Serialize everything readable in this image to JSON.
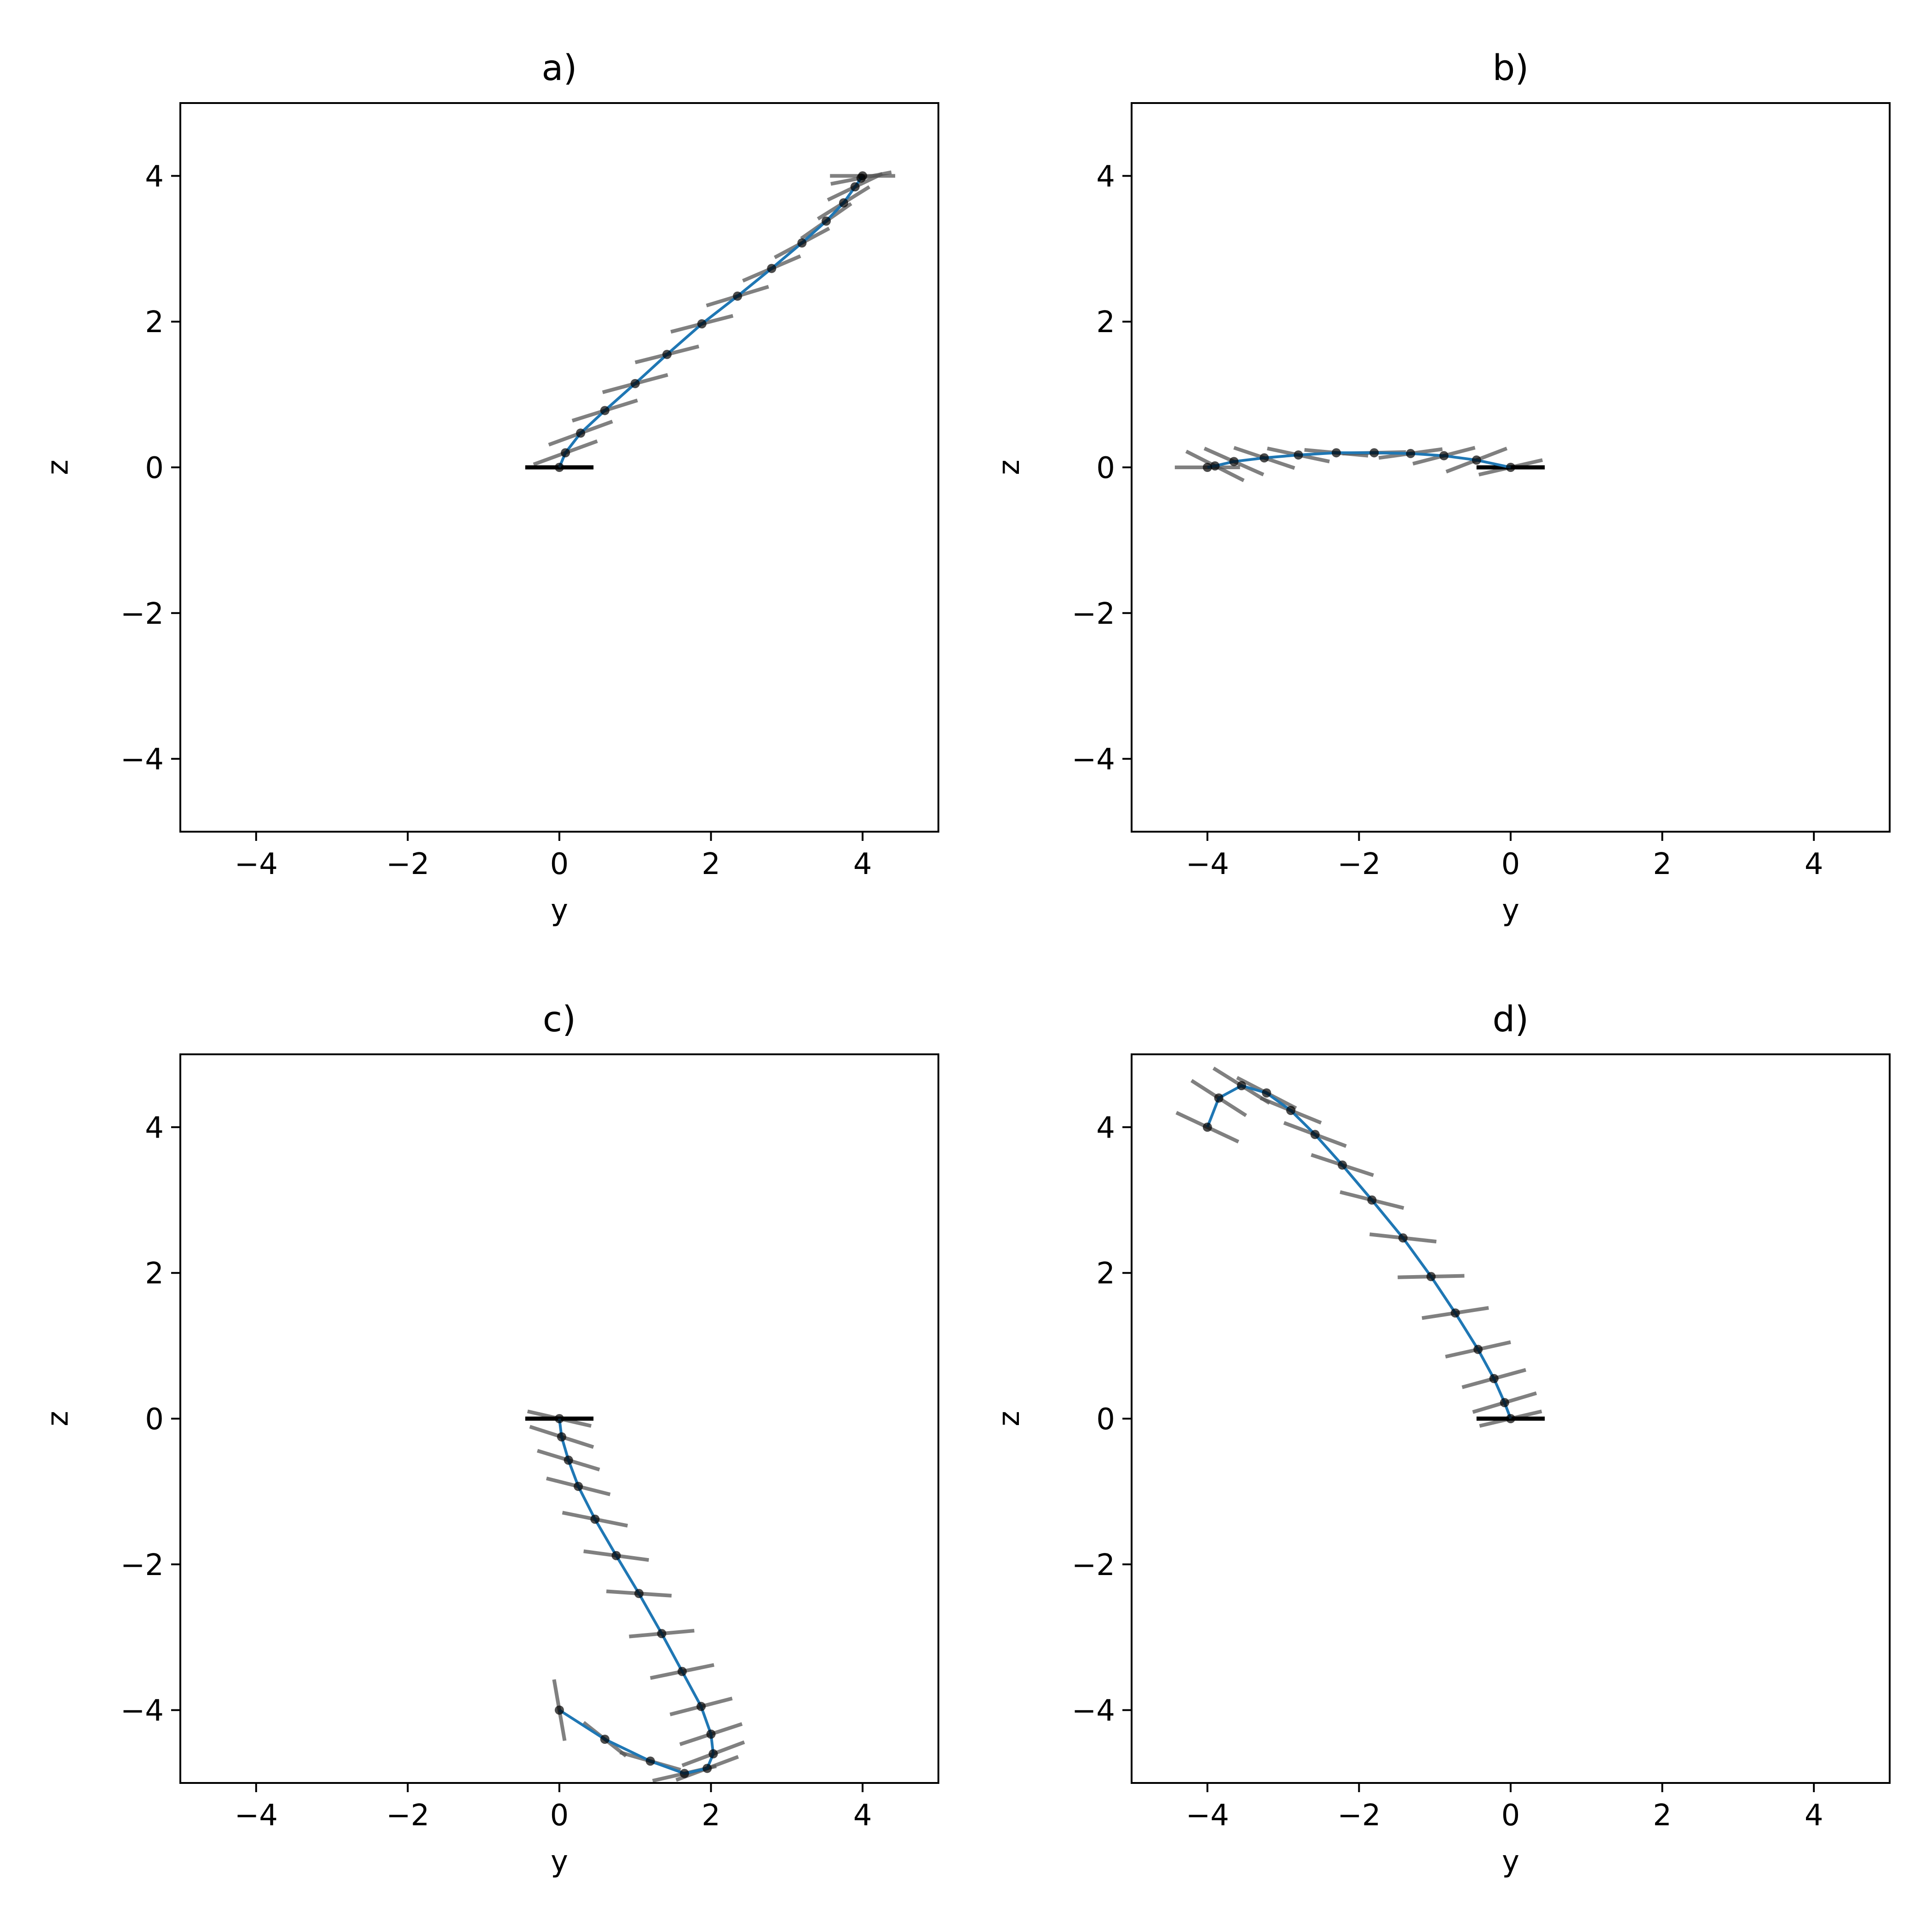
{
  "chart_data": [
    {
      "type": "line",
      "title": "a)",
      "xlabel": "y",
      "ylabel": "z",
      "xlim": [
        -5,
        5
      ],
      "ylim": [
        -5,
        5
      ],
      "xticks": [
        "−4",
        "−2",
        "0",
        "2",
        "4"
      ],
      "yticks": [
        "−4",
        "−2",
        "0",
        "2",
        "4"
      ],
      "grid": false,
      "line_color": "#1f77b4",
      "marker_color": "#000000",
      "segment_color": "#555555",
      "base_segment": {
        "center": [
          0,
          0
        ],
        "dy": 0.45,
        "dz": 0
      },
      "points": [
        {
          "y": 0.0,
          "z": 0.0,
          "dy": 0.45,
          "dz": 0.0
        },
        {
          "y": 0.08,
          "z": 0.2,
          "dy": 0.42,
          "dz": 0.16
        },
        {
          "y": 0.28,
          "z": 0.47,
          "dy": 0.42,
          "dz": 0.16
        },
        {
          "y": 0.6,
          "z": 0.78,
          "dy": 0.43,
          "dz": 0.14
        },
        {
          "y": 1.0,
          "z": 1.15,
          "dy": 0.43,
          "dz": 0.12
        },
        {
          "y": 1.42,
          "z": 1.55,
          "dy": 0.42,
          "dz": 0.11
        },
        {
          "y": 1.88,
          "z": 1.97,
          "dy": 0.41,
          "dz": 0.11
        },
        {
          "y": 2.35,
          "z": 2.35,
          "dy": 0.41,
          "dz": 0.13
        },
        {
          "y": 2.8,
          "z": 2.73,
          "dy": 0.38,
          "dz": 0.17
        },
        {
          "y": 3.2,
          "z": 3.08,
          "dy": 0.36,
          "dz": 0.2
        },
        {
          "y": 3.52,
          "z": 3.38,
          "dy": 0.33,
          "dz": 0.24
        },
        {
          "y": 3.75,
          "z": 3.63,
          "dy": 0.34,
          "dz": 0.22
        },
        {
          "y": 3.9,
          "z": 3.85,
          "dy": 0.36,
          "dz": 0.18
        },
        {
          "y": 3.98,
          "z": 3.97,
          "dy": 0.4,
          "dz": 0.08
        },
        {
          "y": 4.0,
          "z": 4.0,
          "dy": 0.43,
          "dz": 0.0
        }
      ]
    },
    {
      "type": "line",
      "title": "b)",
      "xlabel": "y",
      "ylabel": "z",
      "xlim": [
        -5,
        5
      ],
      "ylim": [
        -5,
        5
      ],
      "xticks": [
        "−4",
        "−2",
        "0",
        "2",
        "4"
      ],
      "yticks": [
        "−4",
        "−2",
        "0",
        "2",
        "4"
      ],
      "grid": false,
      "line_color": "#1f77b4",
      "marker_color": "#000000",
      "segment_color": "#555555",
      "base_segment": {
        "center": [
          0,
          0
        ],
        "dy": 0.45,
        "dz": 0
      },
      "points": [
        {
          "y": 0.0,
          "z": 0.0,
          "dy": 0.42,
          "dz": 0.1
        },
        {
          "y": -0.45,
          "z": 0.1,
          "dy": 0.4,
          "dz": 0.16
        },
        {
          "y": -0.88,
          "z": 0.16,
          "dy": 0.41,
          "dz": 0.11
        },
        {
          "y": -1.32,
          "z": 0.19,
          "dy": 0.42,
          "dz": 0.06
        },
        {
          "y": -1.8,
          "z": 0.2,
          "dy": 0.42,
          "dz": 0.01
        },
        {
          "y": -2.3,
          "z": 0.2,
          "dy": 0.42,
          "dz": -0.04
        },
        {
          "y": -2.8,
          "z": 0.17,
          "dy": 0.41,
          "dz": -0.09
        },
        {
          "y": -3.25,
          "z": 0.13,
          "dy": 0.4,
          "dz": -0.14
        },
        {
          "y": -3.65,
          "z": 0.08,
          "dy": 0.39,
          "dz": -0.18
        },
        {
          "y": -3.9,
          "z": 0.02,
          "dy": 0.38,
          "dz": -0.2
        },
        {
          "y": -4.0,
          "z": 0.0,
          "dy": 0.43,
          "dz": 0.0
        }
      ]
    },
    {
      "type": "line",
      "title": "c)",
      "xlabel": "y",
      "ylabel": "z",
      "xlim": [
        -5,
        5
      ],
      "ylim": [
        -5,
        5
      ],
      "xticks": [
        "−4",
        "−2",
        "0",
        "2",
        "4"
      ],
      "yticks": [
        "−4",
        "−2",
        "0",
        "2",
        "4"
      ],
      "grid": false,
      "line_color": "#1f77b4",
      "marker_color": "#000000",
      "segment_color": "#555555",
      "base_segment": {
        "center": [
          0,
          0
        ],
        "dy": 0.45,
        "dz": 0
      },
      "points": [
        {
          "y": 0.0,
          "z": 0.0,
          "dy": 0.42,
          "dz": -0.1
        },
        {
          "y": 0.03,
          "z": -0.25,
          "dy": 0.42,
          "dz": -0.14
        },
        {
          "y": 0.12,
          "z": -0.57,
          "dy": 0.41,
          "dz": -0.13
        },
        {
          "y": 0.25,
          "z": -0.93,
          "dy": 0.42,
          "dz": -0.11
        },
        {
          "y": 0.47,
          "z": -1.38,
          "dy": 0.43,
          "dz": -0.09
        },
        {
          "y": 0.75,
          "z": -1.88,
          "dy": 0.43,
          "dz": -0.06
        },
        {
          "y": 1.05,
          "z": -2.4,
          "dy": 0.43,
          "dz": -0.03
        },
        {
          "y": 1.35,
          "z": -2.95,
          "dy": 0.43,
          "dz": 0.04
        },
        {
          "y": 1.62,
          "z": -3.47,
          "dy": 0.42,
          "dz": 0.09
        },
        {
          "y": 1.87,
          "z": -3.95,
          "dy": 0.41,
          "dz": 0.11
        },
        {
          "y": 2.0,
          "z": -4.33,
          "dy": 0.41,
          "dz": 0.14
        },
        {
          "y": 2.03,
          "z": -4.6,
          "dy": 0.41,
          "dz": 0.16
        },
        {
          "y": 1.95,
          "z": -4.8,
          "dy": 0.41,
          "dz": 0.16
        },
        {
          "y": 1.65,
          "z": -4.87,
          "dy": 0.42,
          "dz": 0.1
        },
        {
          "y": 1.2,
          "z": -4.7,
          "dy": 0.4,
          "dz": -0.12
        },
        {
          "y": 0.6,
          "z": -4.4,
          "dy": 0.28,
          "dz": -0.23
        },
        {
          "y": 0.0,
          "z": -4.0,
          "dy": 0.07,
          "dz": -0.42
        }
      ]
    },
    {
      "type": "line",
      "title": "d)",
      "xlabel": "y",
      "ylabel": "z",
      "xlim": [
        -5,
        5
      ],
      "ylim": [
        -5,
        5
      ],
      "xticks": [
        "−4",
        "−2",
        "0",
        "2",
        "4"
      ],
      "yticks": [
        "−4",
        "−2",
        "0",
        "2",
        "4"
      ],
      "grid": false,
      "line_color": "#1f77b4",
      "marker_color": "#000000",
      "segment_color": "#555555",
      "base_segment": {
        "center": [
          0,
          0
        ],
        "dy": 0.45,
        "dz": 0
      },
      "points": [
        {
          "y": 0.0,
          "z": 0.0,
          "dy": 0.41,
          "dz": 0.1
        },
        {
          "y": -0.08,
          "z": 0.22,
          "dy": 0.42,
          "dz": 0.13
        },
        {
          "y": -0.22,
          "z": 0.55,
          "dy": 0.42,
          "dz": 0.12
        },
        {
          "y": -0.43,
          "z": 0.95,
          "dy": 0.43,
          "dz": 0.1
        },
        {
          "y": -0.73,
          "z": 1.45,
          "dy": 0.44,
          "dz": 0.07
        },
        {
          "y": -1.05,
          "z": 1.95,
          "dy": 0.44,
          "dz": 0.01
        },
        {
          "y": -1.42,
          "z": 2.48,
          "dy": 0.44,
          "dz": -0.05
        },
        {
          "y": -1.83,
          "z": 3.0,
          "dy": 0.42,
          "dz": -0.11
        },
        {
          "y": -2.22,
          "z": 3.48,
          "dy": 0.41,
          "dz": -0.14
        },
        {
          "y": -2.58,
          "z": 3.9,
          "dy": 0.41,
          "dz": -0.16
        },
        {
          "y": -2.9,
          "z": 4.23,
          "dy": 0.4,
          "dz": -0.17
        },
        {
          "y": -3.22,
          "z": 4.47,
          "dy": 0.39,
          "dz": -0.21
        },
        {
          "y": -3.55,
          "z": 4.57,
          "dy": 0.37,
          "dz": -0.24
        },
        {
          "y": -3.85,
          "z": 4.4,
          "dy": 0.36,
          "dz": -0.24
        },
        {
          "y": -4.0,
          "z": 4.0,
          "dy": 0.41,
          "dz": -0.2
        }
      ]
    }
  ]
}
